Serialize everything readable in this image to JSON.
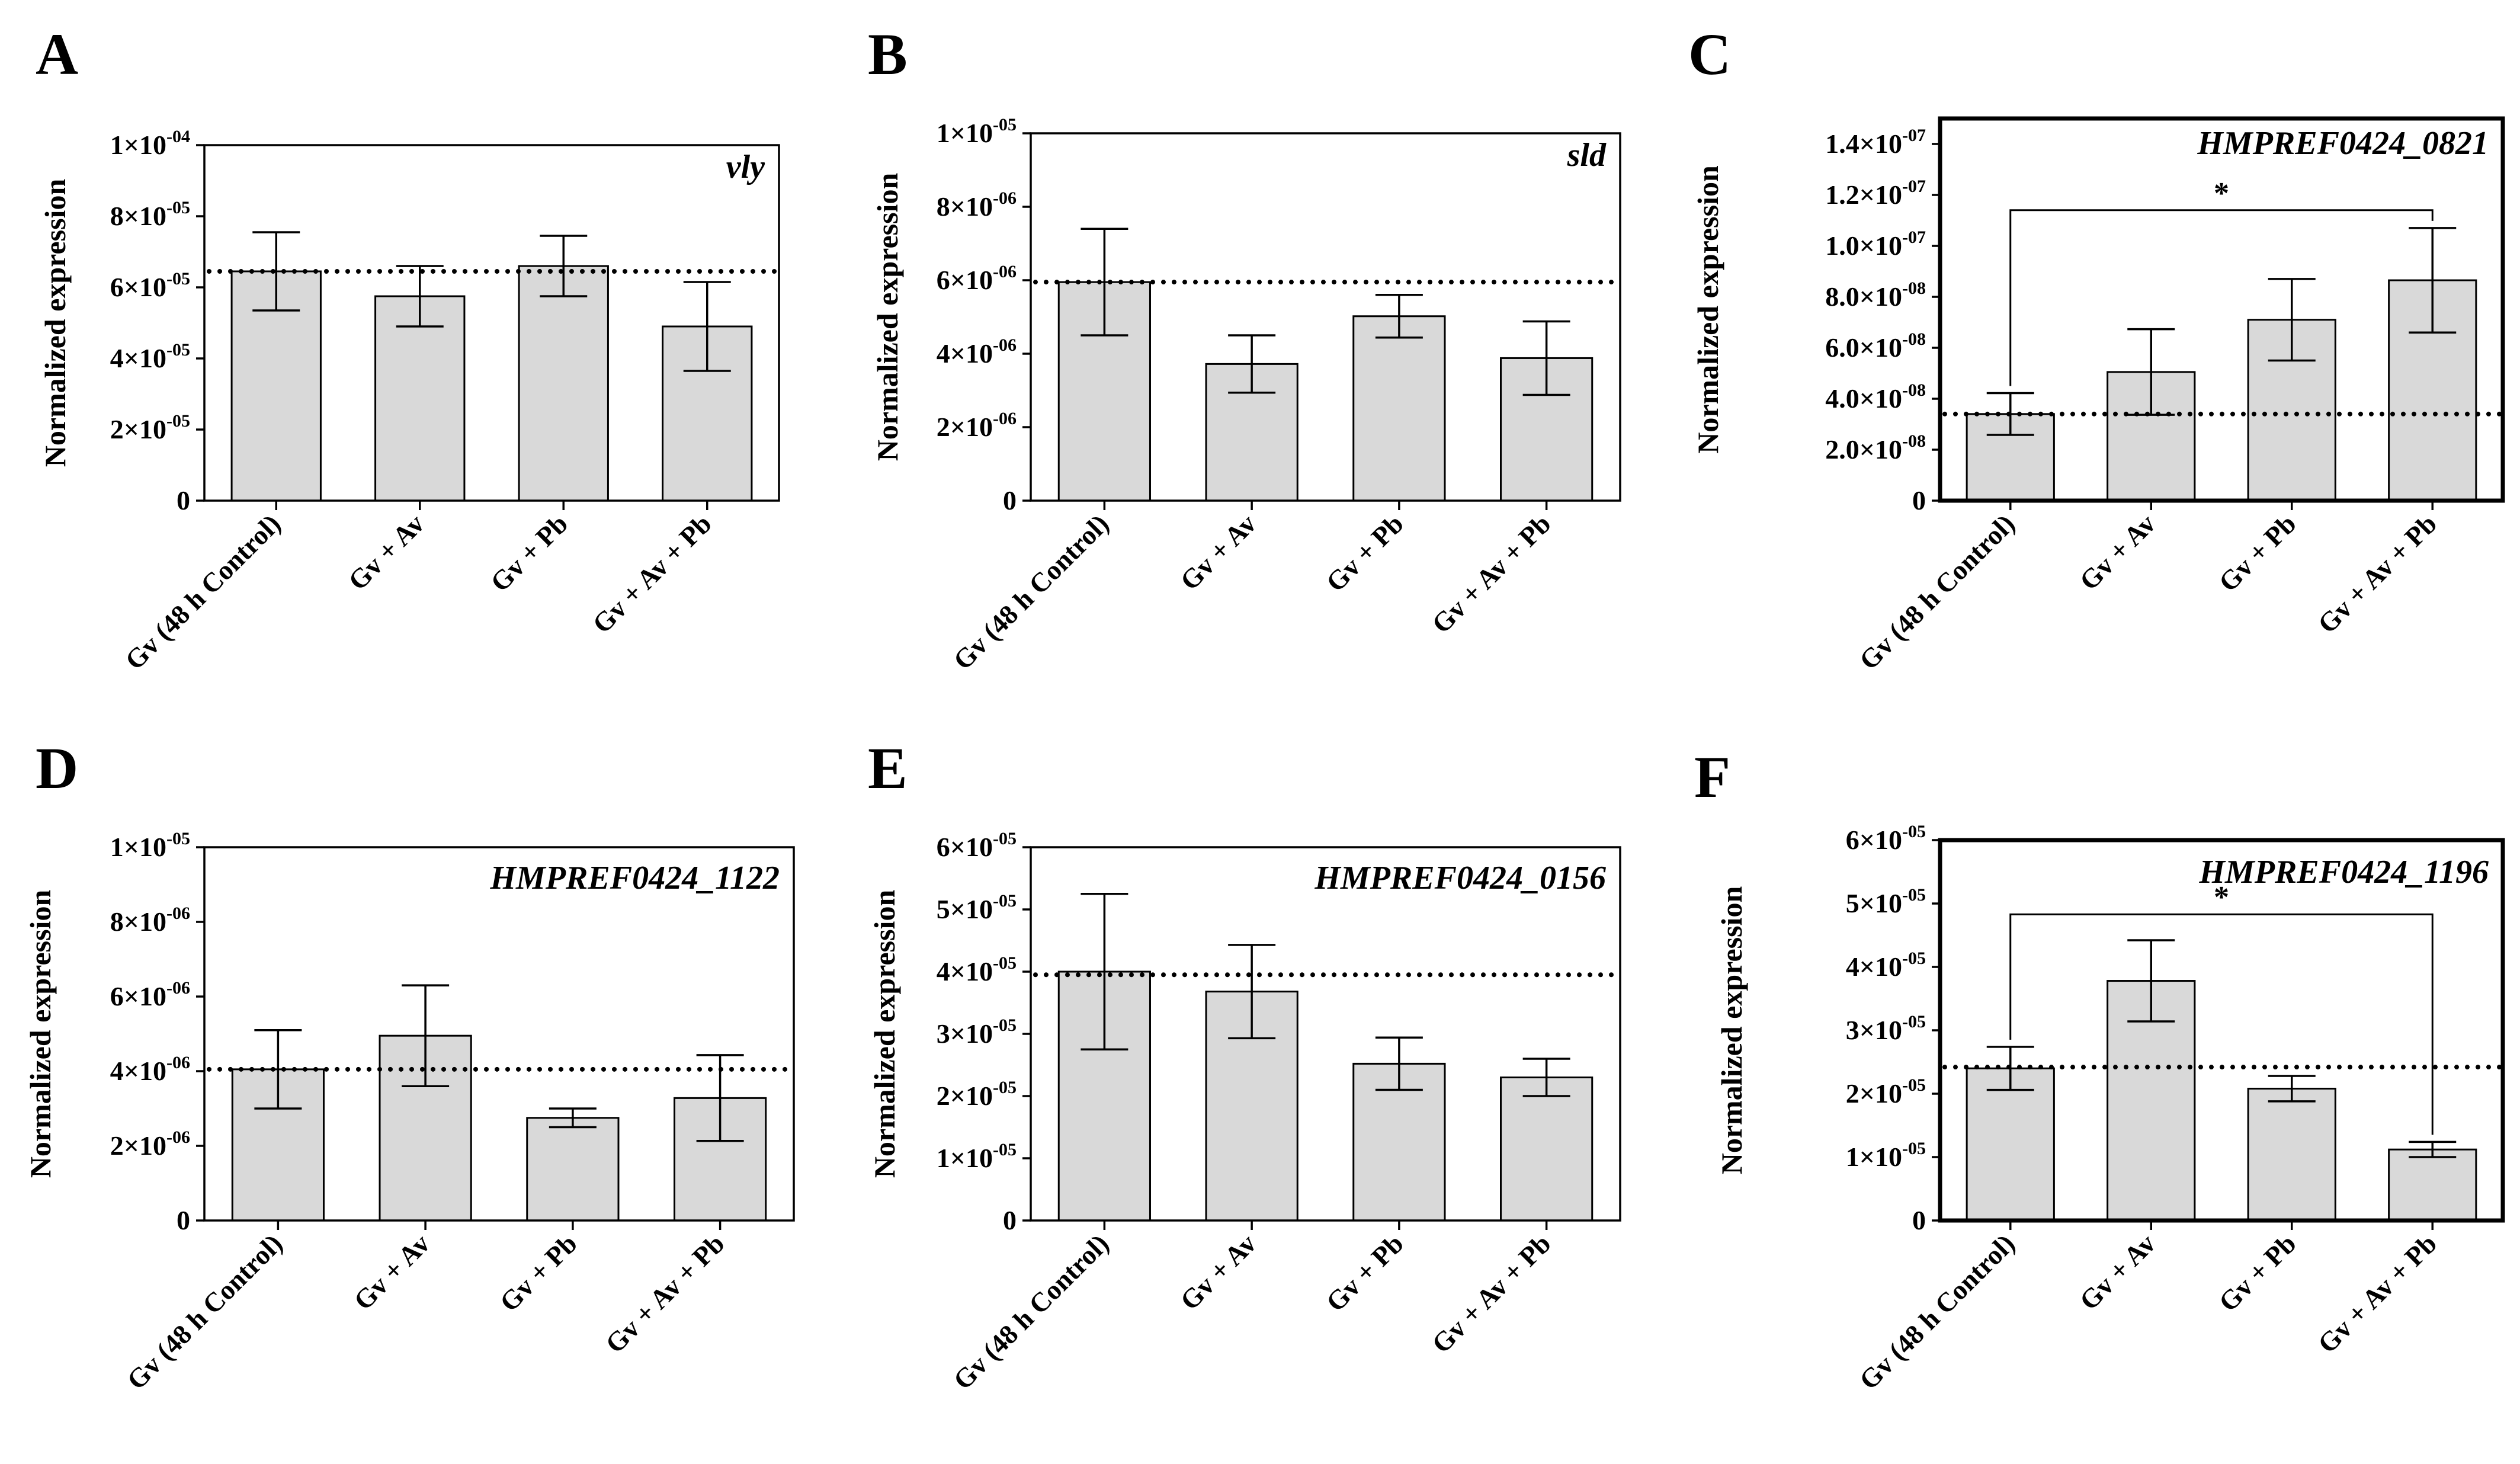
{
  "figure": {
    "bar_color": "#d9d9d9",
    "line_color": "#000000",
    "ylabel": "Normalized expression",
    "categories": [
      "Gv (48 h Control)",
      "Gv + Av",
      "Gv + Pb",
      "Gv + Av + Pb"
    ]
  },
  "chart_data": [
    {
      "type": "bar",
      "panel": "A",
      "title": "vly",
      "xlabel": "",
      "ylabel": "Normalized expression",
      "categories": [
        "Gv (48 h Control)",
        "Gv + Av",
        "Gv + Pb",
        "Gv + Av + Pb"
      ],
      "values": [
        6.45e-05,
        5.75e-05,
        6.6e-05,
        4.9e-05
      ],
      "errors": [
        1.1e-05,
        8.5e-06,
        8.5e-06,
        1.25e-05
      ],
      "ylim": [
        0,
        0.0001
      ],
      "yticks": [
        {
          "value": 0,
          "mant": "0",
          "exp": ""
        },
        {
          "value": 2e-05,
          "mant": "2×10",
          "exp": "-05"
        },
        {
          "value": 4e-05,
          "mant": "4×10",
          "exp": "-05"
        },
        {
          "value": 6e-05,
          "mant": "6×10",
          "exp": "-05"
        },
        {
          "value": 8e-05,
          "mant": "8×10",
          "exp": "-05"
        },
        {
          "value": 0.0001,
          "mant": "1×10",
          "exp": "-04"
        }
      ],
      "reference_line": 6.45e-05,
      "significance": null
    },
    {
      "type": "bar",
      "panel": "B",
      "title": "sld",
      "xlabel": "",
      "ylabel": "Normalized expression",
      "categories": [
        "Gv (48 h Control)",
        "Gv + Av",
        "Gv + Pb",
        "Gv + Av + Pb"
      ],
      "values": [
        5.95e-06,
        3.72e-06,
        5.02e-06,
        3.88e-06
      ],
      "errors": [
        1.45e-06,
        7.8e-07,
        5.8e-07,
        1e-06
      ],
      "ylim": [
        0,
        1e-05
      ],
      "yticks": [
        {
          "value": 0,
          "mant": "0",
          "exp": ""
        },
        {
          "value": 2e-06,
          "mant": "2×10",
          "exp": "-06"
        },
        {
          "value": 4e-06,
          "mant": "4×10",
          "exp": "-06"
        },
        {
          "value": 6e-06,
          "mant": "6×10",
          "exp": "-06"
        },
        {
          "value": 8e-06,
          "mant": "8×10",
          "exp": "-06"
        },
        {
          "value": 1e-05,
          "mant": "1×10",
          "exp": "-05"
        }
      ],
      "reference_line": 5.95e-06,
      "significance": null
    },
    {
      "type": "bar",
      "panel": "C",
      "title": "HMPREF0424_0821",
      "xlabel": "",
      "ylabel": "Normalized expression",
      "categories": [
        "Gv (48 h Control)",
        "Gv + Av",
        "Gv + Pb",
        "Gv + Av + Pb"
      ],
      "values": [
        3.4e-08,
        5.05e-08,
        7.1e-08,
        8.65e-08
      ],
      "errors": [
        8.2e-09,
        1.68e-08,
        1.6e-08,
        2.05e-08
      ],
      "ylim": [
        0,
        1.5e-07
      ],
      "yticks": [
        {
          "value": 0,
          "mant": "0",
          "exp": ""
        },
        {
          "value": 2e-08,
          "mant": "2.0×10",
          "exp": "-08"
        },
        {
          "value": 4e-08,
          "mant": "4.0×10",
          "exp": "-08"
        },
        {
          "value": 6e-08,
          "mant": "6.0×10",
          "exp": "-08"
        },
        {
          "value": 8e-08,
          "mant": "8.0×10",
          "exp": "-08"
        },
        {
          "value": 1e-07,
          "mant": "1.0×10",
          "exp": "-07"
        },
        {
          "value": 1.2e-07,
          "mant": "1.2×10",
          "exp": "-07"
        },
        {
          "value": 1.4e-07,
          "mant": "1.4×10",
          "exp": "-07"
        }
      ],
      "reference_line": 3.4e-08,
      "significance": {
        "from": 0,
        "to": 3,
        "level": 1.14e-07,
        "label": "*"
      }
    },
    {
      "type": "bar",
      "panel": "D",
      "title": "HMPREF0424_1122",
      "xlabel": "",
      "ylabel": "Normalized expression",
      "categories": [
        "Gv (48 h Control)",
        "Gv + Av",
        "Gv + Pb",
        "Gv + Av + Pb"
      ],
      "values": [
        4.05e-06,
        4.95e-06,
        2.75e-06,
        3.28e-06
      ],
      "errors": [
        1.05e-06,
        1.35e-06,
        2.5e-07,
        1.15e-06
      ],
      "ylim": [
        0,
        1e-05
      ],
      "yticks": [
        {
          "value": 0,
          "mant": "0",
          "exp": ""
        },
        {
          "value": 2e-06,
          "mant": "2×10",
          "exp": "-06"
        },
        {
          "value": 4e-06,
          "mant": "4×10",
          "exp": "-06"
        },
        {
          "value": 6e-06,
          "mant": "6×10",
          "exp": "-06"
        },
        {
          "value": 8e-06,
          "mant": "8×10",
          "exp": "-06"
        },
        {
          "value": 1e-05,
          "mant": "1×10",
          "exp": "-05"
        }
      ],
      "reference_line": 4.05e-06,
      "significance": null
    },
    {
      "type": "bar",
      "panel": "E",
      "title": "HMPREF0424_0156",
      "xlabel": "",
      "ylabel": "Normalized expression",
      "categories": [
        "Gv (48 h Control)",
        "Gv + Av",
        "Gv + Pb",
        "Gv + Av + Pb"
      ],
      "values": [
        4e-05,
        3.68e-05,
        2.52e-05,
        2.3e-05
      ],
      "errors": [
        1.25e-05,
        7.5e-06,
        4.2e-06,
        3e-06
      ],
      "ylim": [
        0,
        6e-05
      ],
      "yticks": [
        {
          "value": 0,
          "mant": "0",
          "exp": ""
        },
        {
          "value": 1e-05,
          "mant": "1×10",
          "exp": "-05"
        },
        {
          "value": 2e-05,
          "mant": "2×10",
          "exp": "-05"
        },
        {
          "value": 3e-05,
          "mant": "3×10",
          "exp": "-05"
        },
        {
          "value": 4e-05,
          "mant": "4×10",
          "exp": "-05"
        },
        {
          "value": 5e-05,
          "mant": "5×10",
          "exp": "-05"
        },
        {
          "value": 6e-05,
          "mant": "6×10",
          "exp": "-05"
        }
      ],
      "reference_line": 3.95e-05,
      "significance": null
    },
    {
      "type": "bar",
      "panel": "F",
      "title": "HMPREF0424_1196",
      "xlabel": "",
      "ylabel": "Normalized expression",
      "categories": [
        "Gv (48 h Control)",
        "Gv + Av",
        "Gv + Pb",
        "Gv + Av + Pb"
      ],
      "values": [
        2.4e-05,
        3.78e-05,
        2.08e-05,
        1.12e-05
      ],
      "errors": [
        3.4e-06,
        6.4e-06,
        2e-06,
        1.2e-06
      ],
      "ylim": [
        0,
        6e-05
      ],
      "yticks": [
        {
          "value": 0,
          "mant": "0",
          "exp": ""
        },
        {
          "value": 1e-05,
          "mant": "1×10",
          "exp": "-05"
        },
        {
          "value": 2e-05,
          "mant": "2×10",
          "exp": "-05"
        },
        {
          "value": 3e-05,
          "mant": "3×10",
          "exp": "-05"
        },
        {
          "value": 4e-05,
          "mant": "4×10",
          "exp": "-05"
        },
        {
          "value": 5e-05,
          "mant": "5×10",
          "exp": "-05"
        },
        {
          "value": 6e-05,
          "mant": "6×10",
          "exp": "-05"
        }
      ],
      "reference_line": 2.42e-05,
      "significance": {
        "from": 0,
        "to": 3,
        "level": 4.83e-05,
        "label": "*"
      }
    }
  ]
}
